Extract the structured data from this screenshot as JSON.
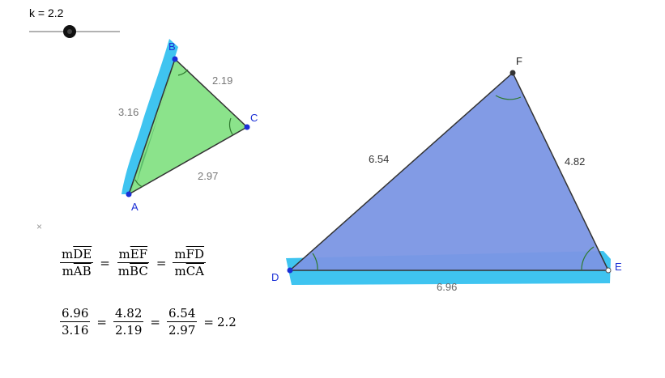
{
  "slider": {
    "label": "k = 2.2",
    "value": 2.2
  },
  "close_symbol": "×",
  "small_triangle": {
    "vertices": {
      "A": "A",
      "B": "B",
      "C": "C"
    },
    "sides": {
      "AB": "3.16",
      "BC": "2.19",
      "CA": "2.97"
    }
  },
  "large_triangle": {
    "vertices": {
      "D": "D",
      "E": "E",
      "F": "F"
    },
    "sides": {
      "DE": "6.96",
      "EF": "4.82",
      "FD": "6.54"
    }
  },
  "ratio_equation": {
    "terms": [
      {
        "num": {
          "prefix": "m",
          "seg": "DE"
        },
        "den": {
          "prefix": "m",
          "seg": "AB"
        }
      },
      {
        "num": {
          "prefix": "m",
          "seg": "EF"
        },
        "den": {
          "prefix": "m",
          "seg": "BC"
        }
      },
      {
        "num": {
          "prefix": "m",
          "seg": "FD"
        },
        "den": {
          "prefix": "m",
          "seg": "CA"
        }
      }
    ],
    "eq": "="
  },
  "value_equation": {
    "terms": [
      {
        "num": "6.96",
        "den": "3.16"
      },
      {
        "num": "4.82",
        "den": "2.19"
      },
      {
        "num": "6.54",
        "den": "2.97"
      }
    ],
    "result": "2.2",
    "eq": "="
  },
  "colors": {
    "small_fill": "#7ee07e",
    "large_fill": "#7b96e4",
    "highlight": "#3fc4f0",
    "point": "#1a2fd6",
    "edge": "#333333",
    "angle_mark": "#2f7a2f"
  }
}
